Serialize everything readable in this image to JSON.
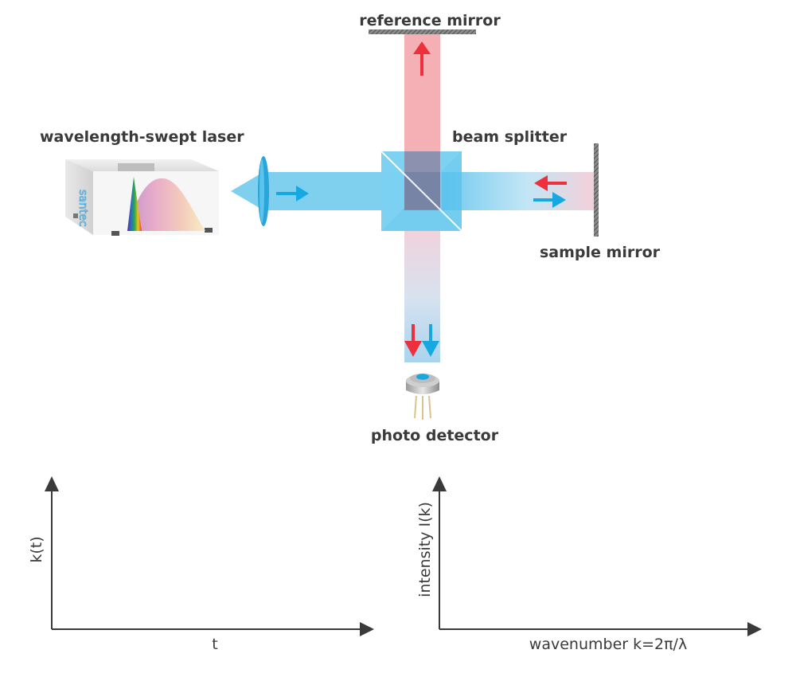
{
  "labels": {
    "reference_mirror": "reference mirror",
    "laser": "wavelength-swept laser",
    "beam_splitter": "beam splitter",
    "sample_mirror": "sample mirror",
    "photo_detector": "photo detector"
  },
  "laser_panel_text": "santec",
  "plots": {
    "left": {
      "xlabel": "t",
      "ylabel": "k(t)"
    },
    "right": {
      "xlabel": "wavenumber k=2π/λ",
      "ylabel": "intensity I(k)"
    }
  },
  "colors": {
    "blue_beam": "#5cc3ec",
    "red_beam": "#f3a2a8",
    "blue_arrow": "#16a9e1",
    "red_arrow": "#ee2f3c",
    "text": "#3a3a3a",
    "axis": "#3a3a3a"
  }
}
